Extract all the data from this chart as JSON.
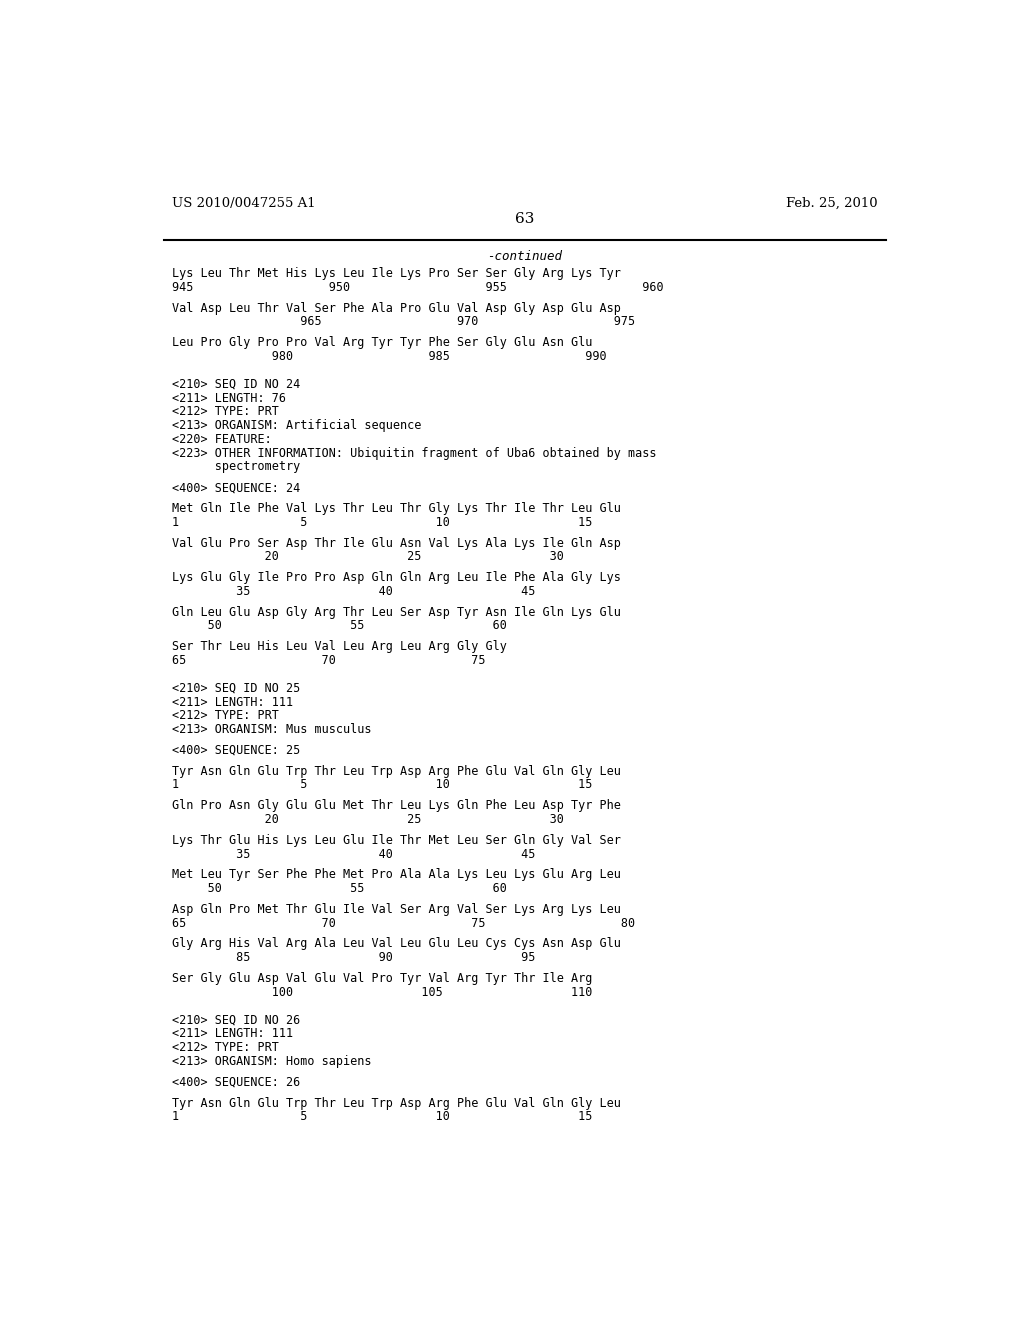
{
  "bg_color": "#ffffff",
  "header_left": "US 2010/0047255 A1",
  "header_right": "Feb. 25, 2010",
  "page_number": "63",
  "continued_label": "-continued",
  "font_size": 8.5,
  "lines": [
    {
      "type": "seq",
      "text": "Lys Leu Thr Met His Lys Leu Ile Lys Pro Ser Ser Gly Arg Lys Tyr"
    },
    {
      "type": "num",
      "text": "945                   950                   955                   960"
    },
    {
      "type": "blank"
    },
    {
      "type": "seq",
      "text": "Val Asp Leu Thr Val Ser Phe Ala Pro Glu Val Asp Gly Asp Glu Asp"
    },
    {
      "type": "num",
      "text": "                  965                   970                   975"
    },
    {
      "type": "blank"
    },
    {
      "type": "seq",
      "text": "Leu Pro Gly Pro Pro Val Arg Tyr Tyr Phe Ser Gly Glu Asn Glu"
    },
    {
      "type": "num",
      "text": "              980                   985                   990"
    },
    {
      "type": "blank"
    },
    {
      "type": "blank"
    },
    {
      "type": "meta",
      "text": "<210> SEQ ID NO 24"
    },
    {
      "type": "meta",
      "text": "<211> LENGTH: 76"
    },
    {
      "type": "meta",
      "text": "<212> TYPE: PRT"
    },
    {
      "type": "meta",
      "text": "<213> ORGANISM: Artificial sequence"
    },
    {
      "type": "meta",
      "text": "<220> FEATURE:"
    },
    {
      "type": "meta",
      "text": "<223> OTHER INFORMATION: Ubiquitin fragment of Uba6 obtained by mass"
    },
    {
      "type": "meta",
      "text": "      spectrometry"
    },
    {
      "type": "blank"
    },
    {
      "type": "meta",
      "text": "<400> SEQUENCE: 24"
    },
    {
      "type": "blank"
    },
    {
      "type": "seq",
      "text": "Met Gln Ile Phe Val Lys Thr Leu Thr Gly Lys Thr Ile Thr Leu Glu"
    },
    {
      "type": "num",
      "text": "1                 5                  10                  15"
    },
    {
      "type": "blank"
    },
    {
      "type": "seq",
      "text": "Val Glu Pro Ser Asp Thr Ile Glu Asn Val Lys Ala Lys Ile Gln Asp"
    },
    {
      "type": "num",
      "text": "             20                  25                  30"
    },
    {
      "type": "blank"
    },
    {
      "type": "seq",
      "text": "Lys Glu Gly Ile Pro Pro Asp Gln Gln Arg Leu Ile Phe Ala Gly Lys"
    },
    {
      "type": "num",
      "text": "         35                  40                  45"
    },
    {
      "type": "blank"
    },
    {
      "type": "seq",
      "text": "Gln Leu Glu Asp Gly Arg Thr Leu Ser Asp Tyr Asn Ile Gln Lys Glu"
    },
    {
      "type": "num",
      "text": "     50                  55                  60"
    },
    {
      "type": "blank"
    },
    {
      "type": "seq",
      "text": "Ser Thr Leu His Leu Val Leu Arg Leu Arg Gly Gly"
    },
    {
      "type": "num",
      "text": "65                   70                   75"
    },
    {
      "type": "blank"
    },
    {
      "type": "blank"
    },
    {
      "type": "meta",
      "text": "<210> SEQ ID NO 25"
    },
    {
      "type": "meta",
      "text": "<211> LENGTH: 111"
    },
    {
      "type": "meta",
      "text": "<212> TYPE: PRT"
    },
    {
      "type": "meta",
      "text": "<213> ORGANISM: Mus musculus"
    },
    {
      "type": "blank"
    },
    {
      "type": "meta",
      "text": "<400> SEQUENCE: 25"
    },
    {
      "type": "blank"
    },
    {
      "type": "seq",
      "text": "Tyr Asn Gln Glu Trp Thr Leu Trp Asp Arg Phe Glu Val Gln Gly Leu"
    },
    {
      "type": "num",
      "text": "1                 5                  10                  15"
    },
    {
      "type": "blank"
    },
    {
      "type": "seq",
      "text": "Gln Pro Asn Gly Glu Glu Met Thr Leu Lys Gln Phe Leu Asp Tyr Phe"
    },
    {
      "type": "num",
      "text": "             20                  25                  30"
    },
    {
      "type": "blank"
    },
    {
      "type": "seq",
      "text": "Lys Thr Glu His Lys Leu Glu Ile Thr Met Leu Ser Gln Gly Val Ser"
    },
    {
      "type": "num",
      "text": "         35                  40                  45"
    },
    {
      "type": "blank"
    },
    {
      "type": "seq",
      "text": "Met Leu Tyr Ser Phe Phe Met Pro Ala Ala Lys Leu Lys Glu Arg Leu"
    },
    {
      "type": "num",
      "text": "     50                  55                  60"
    },
    {
      "type": "blank"
    },
    {
      "type": "seq",
      "text": "Asp Gln Pro Met Thr Glu Ile Val Ser Arg Val Ser Lys Arg Lys Leu"
    },
    {
      "type": "num",
      "text": "65                   70                   75                   80"
    },
    {
      "type": "blank"
    },
    {
      "type": "seq",
      "text": "Gly Arg His Val Arg Ala Leu Val Leu Glu Leu Cys Cys Asn Asp Glu"
    },
    {
      "type": "num",
      "text": "         85                  90                  95"
    },
    {
      "type": "blank"
    },
    {
      "type": "seq",
      "text": "Ser Gly Glu Asp Val Glu Val Pro Tyr Val Arg Tyr Thr Ile Arg"
    },
    {
      "type": "num",
      "text": "              100                  105                  110"
    },
    {
      "type": "blank"
    },
    {
      "type": "blank"
    },
    {
      "type": "meta",
      "text": "<210> SEQ ID NO 26"
    },
    {
      "type": "meta",
      "text": "<211> LENGTH: 111"
    },
    {
      "type": "meta",
      "text": "<212> TYPE: PRT"
    },
    {
      "type": "meta",
      "text": "<213> ORGANISM: Homo sapiens"
    },
    {
      "type": "blank"
    },
    {
      "type": "meta",
      "text": "<400> SEQUENCE: 26"
    },
    {
      "type": "blank"
    },
    {
      "type": "seq",
      "text": "Tyr Asn Gln Glu Trp Thr Leu Trp Asp Arg Phe Glu Val Gln Gly Leu"
    },
    {
      "type": "num",
      "text": "1                 5                  10                  15"
    }
  ]
}
